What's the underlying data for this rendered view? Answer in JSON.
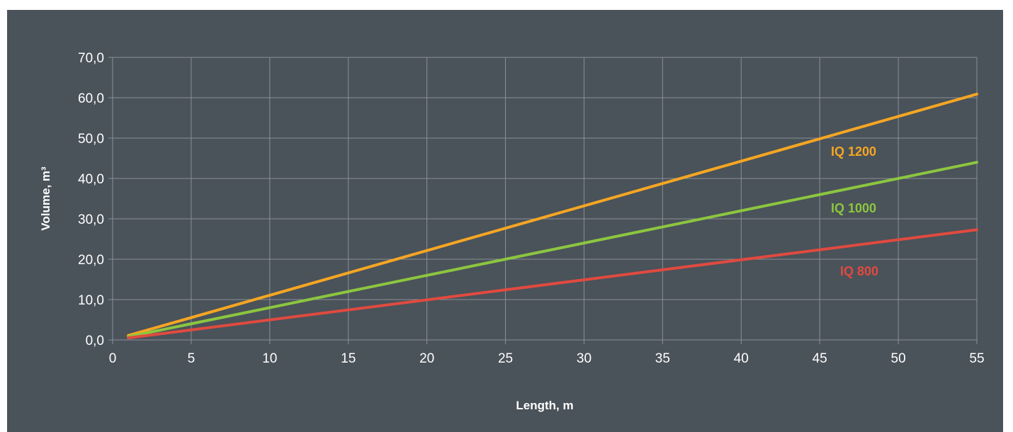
{
  "chart_data": {
    "type": "line",
    "title": "",
    "xlabel": "Length, m",
    "ylabel": "Volume, m³",
    "xlim": [
      0,
      55
    ],
    "ylim": [
      0,
      70
    ],
    "x_ticks": [
      "0",
      "5",
      "10",
      "15",
      "20",
      "25",
      "30",
      "35",
      "40",
      "45",
      "50",
      "55"
    ],
    "y_ticks": [
      "0,0",
      "10,0",
      "20,0",
      "30,0",
      "40,0",
      "50,0",
      "60,0",
      "70,0"
    ],
    "grid": true,
    "legend": "inline labels near line ends",
    "series": [
      {
        "name": "IQ 1200",
        "color": "#f5a623",
        "x": [
          1,
          55
        ],
        "y": [
          1.1,
          60.9
        ]
      },
      {
        "name": "IQ 1000",
        "color": "#8cc63f",
        "x": [
          1,
          55
        ],
        "y": [
          0.8,
          44.0
        ]
      },
      {
        "name": "IQ 800",
        "color": "#e04a3f",
        "x": [
          1,
          55
        ],
        "y": [
          0.5,
          27.3
        ]
      }
    ]
  },
  "colors": {
    "background": "#4a525a",
    "grid": "#8a9097",
    "text": "#ffffff"
  }
}
